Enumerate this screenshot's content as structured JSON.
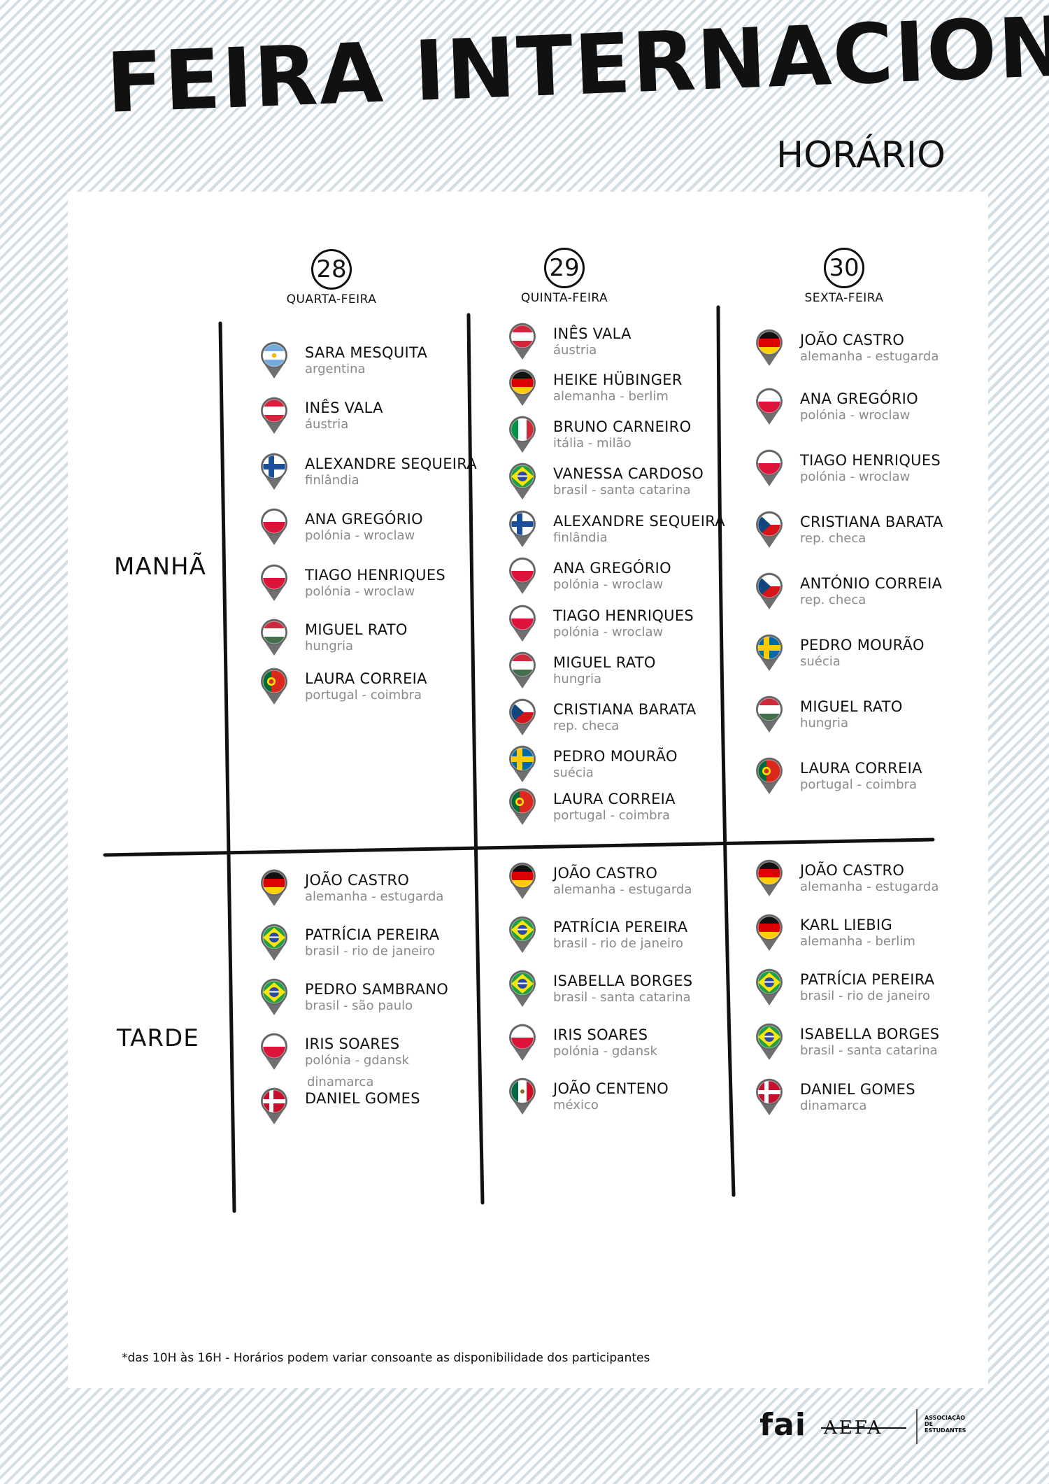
{
  "header": {
    "title": "FEIRA INTERNACIONAL",
    "subtitle": "HORÁRIO"
  },
  "days": [
    {
      "number": "28",
      "name": "QUARTA-FEIRA"
    },
    {
      "number": "29",
      "name": "QUINTA-FEIRA"
    },
    {
      "number": "30",
      "name": "SEXTA-FEIRA"
    }
  ],
  "periods": {
    "morning": "MANHÃ",
    "afternoon": "TARDE"
  },
  "schedule": {
    "morning": [
      [
        {
          "name": "SARA MESQUITA",
          "loc": "argentina",
          "flag": "argentina"
        },
        {
          "name": "INÊS VALA",
          "loc": "áustria",
          "flag": "austria"
        },
        {
          "name": "ALEXANDRE SEQUEIRA",
          "loc": "finlândia",
          "flag": "finland"
        },
        {
          "name": "ANA GREGÓRIO",
          "loc": "polónia - wroclaw",
          "flag": "poland"
        },
        {
          "name": "TIAGO HENRIQUES",
          "loc": "polónia - wroclaw",
          "flag": "poland"
        },
        {
          "name": "MIGUEL RATO",
          "loc": "hungria",
          "flag": "hungary"
        },
        {
          "name": "LAURA CORREIA",
          "loc": "portugal - coimbra",
          "flag": "portugal"
        }
      ],
      [
        {
          "name": "INÊS VALA",
          "loc": "áustria",
          "flag": "austria"
        },
        {
          "name": "HEIKE HÜBINGER",
          "loc": "alemanha - berlim",
          "flag": "germany"
        },
        {
          "name": "BRUNO CARNEIRO",
          "loc": "itália - milão",
          "flag": "italy"
        },
        {
          "name": "VANESSA CARDOSO",
          "loc": "brasil - santa catarina",
          "flag": "brazil"
        },
        {
          "name": "ALEXANDRE SEQUEIRA",
          "loc": "finlândia",
          "flag": "finland"
        },
        {
          "name": "ANA GREGÓRIO",
          "loc": "polónia - wroclaw",
          "flag": "poland"
        },
        {
          "name": "TIAGO HENRIQUES",
          "loc": "polónia - wroclaw",
          "flag": "poland"
        },
        {
          "name": "MIGUEL RATO",
          "loc": "hungria",
          "flag": "hungary"
        },
        {
          "name": "CRISTIANA BARATA",
          "loc": "rep. checa",
          "flag": "czech"
        },
        {
          "name": "PEDRO MOURÃO",
          "loc": "suécia",
          "flag": "sweden"
        },
        {
          "name": "LAURA CORREIA",
          "loc": "portugal - coimbra",
          "flag": "portugal"
        }
      ],
      [
        {
          "name": "JOÃO CASTRO",
          "loc": "alemanha - estugarda",
          "flag": "germany"
        },
        {
          "name": "ANA GREGÓRIO",
          "loc": "polónia - wroclaw",
          "flag": "poland"
        },
        {
          "name": "TIAGO HENRIQUES",
          "loc": "polónia - wroclaw",
          "flag": "poland"
        },
        {
          "name": "CRISTIANA BARATA",
          "loc": "rep. checa",
          "flag": "czech"
        },
        {
          "name": "ANTÓNIO CORREIA",
          "loc": "rep. checa",
          "flag": "czech"
        },
        {
          "name": "PEDRO MOURÃO",
          "loc": "suécia",
          "flag": "sweden"
        },
        {
          "name": "MIGUEL RATO",
          "loc": "hungria",
          "flag": "hungary"
        },
        {
          "name": "LAURA CORREIA",
          "loc": "portugal - coimbra",
          "flag": "portugal"
        }
      ]
    ],
    "afternoon": [
      [
        {
          "name": "JOÃO CASTRO",
          "loc": "alemanha - estugarda",
          "flag": "germany"
        },
        {
          "name": "PATRÍCIA PEREIRA",
          "loc": "brasil - rio de janeiro",
          "flag": "brazil"
        },
        {
          "name": "PEDRO SAMBRANO",
          "loc": "brasil - são paulo",
          "flag": "brazil"
        },
        {
          "name": "IRIS SOARES",
          "loc": "polónia - gdansk",
          "flag": "poland"
        },
        {
          "name": "DANIEL GOMES",
          "loc": "",
          "flag": "denmark"
        }
      ],
      [
        {
          "name": "JOÃO CASTRO",
          "loc": "alemanha - estugarda",
          "flag": "germany"
        },
        {
          "name": "PATRÍCIA PEREIRA",
          "loc": "brasil - rio de janeiro",
          "flag": "brazil"
        },
        {
          "name": "ISABELLA BORGES",
          "loc": "brasil - santa catarina",
          "flag": "brazil"
        },
        {
          "name": "IRIS SOARES",
          "loc": "polónia - gdansk",
          "flag": "poland"
        },
        {
          "name": "JOÃO CENTENO",
          "loc": "méxico",
          "flag": "mexico"
        }
      ],
      [
        {
          "name": "JOÃO CASTRO",
          "loc": "alemanha - estugarda",
          "flag": "germany"
        },
        {
          "name": "KARL LIEBIG",
          "loc": "alemanha - berlim",
          "flag": "germany"
        },
        {
          "name": "PATRÍCIA PEREIRA",
          "loc": "brasil - rio de janeiro",
          "flag": "brazil"
        },
        {
          "name": "ISABELLA BORGES",
          "loc": "brasil - santa catarina",
          "flag": "brazil"
        },
        {
          "name": "DANIEL GOMES",
          "loc": "dinamarca",
          "flag": "denmark"
        }
      ]
    ]
  },
  "extra_label": "dinamarca",
  "footnote": "*das 10H às 16H - Horários podem variar consoante as disponibilidade dos participantes",
  "logos": {
    "fai": "fai",
    "aefa": "AEFA",
    "association": "ASSOCIAÇÃO DE ESTUDANTES"
  }
}
